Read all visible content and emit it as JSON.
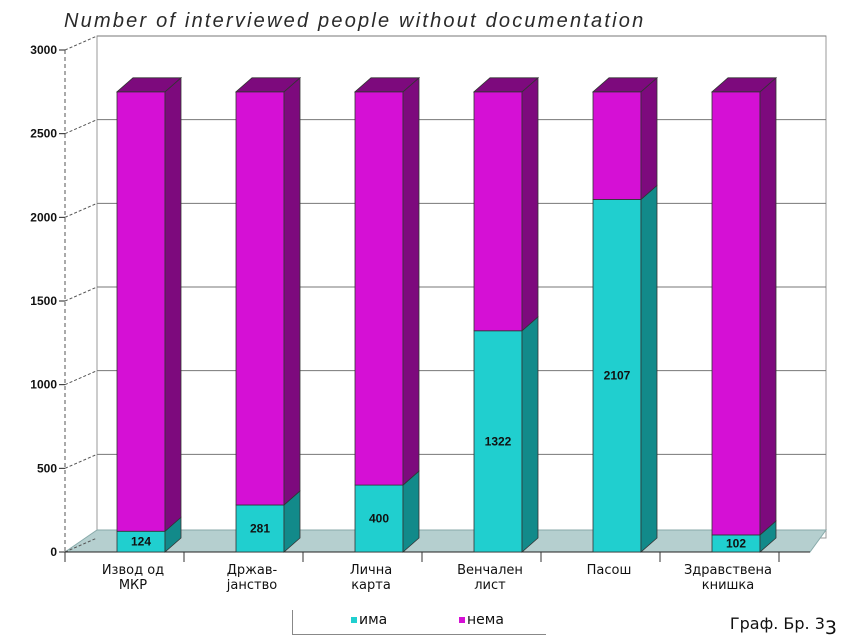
{
  "chart_data": {
    "type": "bar",
    "stacked": true,
    "title": "Number of interviewed people without documentation",
    "categories": [
      [
        "Извод од",
        "МКР"
      ],
      [
        "Држав-",
        "јанство"
      ],
      [
        "Лична",
        "карта"
      ],
      [
        "Венчален",
        "лист"
      ],
      [
        "Пасош"
      ],
      [
        "Здравствена",
        "книшка"
      ]
    ],
    "series": [
      {
        "name": "има",
        "color": "#20cfcf",
        "side_color": "#128a8a",
        "values": [
          124,
          281,
          400,
          1322,
          2107,
          102
        ],
        "show_labels": true
      },
      {
        "name": "нема",
        "color": "#d510d5",
        "side_color": "#7d0a7d",
        "values": [
          2626,
          2469,
          2350,
          1428,
          643,
          2648
        ],
        "show_labels": false
      }
    ],
    "ylim": [
      0,
      3000
    ],
    "yticks": [
      0,
      500,
      1000,
      1500,
      2000,
      2500,
      3000
    ],
    "grid": true,
    "legend_position": "bottom"
  },
  "caption": {
    "main": "Граф. Бр. 3",
    "sub": "3"
  }
}
